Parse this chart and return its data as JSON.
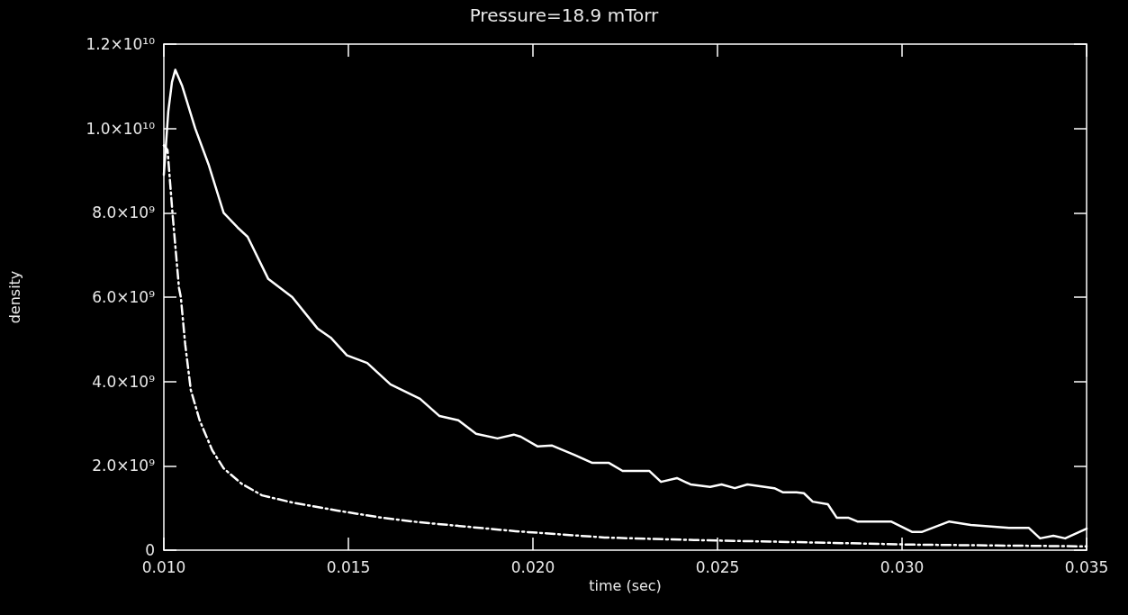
{
  "chart_data": {
    "type": "line",
    "title": "Pressure=18.9 mTorr",
    "xlabel": "time (sec)",
    "ylabel": "density",
    "xlim": [
      0.01,
      0.035
    ],
    "xticks": [
      {
        "value": 0.01,
        "label": "0.010"
      },
      {
        "value": 0.015,
        "label": "0.015"
      },
      {
        "value": 0.02,
        "label": "0.020"
      },
      {
        "value": 0.025,
        "label": "0.025"
      },
      {
        "value": 0.03,
        "label": "0.030"
      },
      {
        "value": 0.035,
        "label": "0.035"
      }
    ],
    "ylim": [
      0,
      12000000000
    ],
    "yticks": [
      0,
      {
        "value": 2000000000,
        "label": "2.0×10⁹"
      },
      {
        "value": 4000000000,
        "label": "4.0×10⁹"
      },
      {
        "value": 6000000000,
        "label": "6.0×10⁹"
      },
      {
        "value": 8000000000,
        "label": "8.0×10⁹"
      },
      {
        "value": 10000000000,
        "label": "1.0×10¹⁰"
      },
      {
        "value": 12000000000,
        "label": "1.2×10¹⁰"
      }
    ],
    "grid": false,
    "marker": "none",
    "series": [
      {
        "color": "#ffffff",
        "line_style": "solid",
        "x": [
          0.01,
          0.01012,
          0.01022,
          0.01031,
          0.0105,
          0.01085,
          0.01121,
          0.01162,
          0.012,
          0.01227,
          0.01283,
          0.01348,
          0.01416,
          0.01452,
          0.01496,
          0.01551,
          0.01614,
          0.01694,
          0.01747,
          0.01798,
          0.01846,
          0.01904,
          0.01948,
          0.01967,
          0.02013,
          0.02052,
          0.02112,
          0.02161,
          0.02206,
          0.02243,
          0.02315,
          0.02347,
          0.0239,
          0.02427,
          0.0248,
          0.02511,
          0.02547,
          0.02581,
          0.02654,
          0.02678,
          0.02714,
          0.02734,
          0.02758,
          0.02799,
          0.02823,
          0.02854,
          0.02879,
          0.0297,
          0.03028,
          0.03053,
          0.03128,
          0.03186,
          0.0329,
          0.03343,
          0.03374,
          0.0341,
          0.03442,
          0.035
        ],
        "values": [
          8900000000,
          10400000000,
          11100000000,
          11390000000,
          11000000000,
          10000000000,
          9150000000,
          8000000000,
          7650000000,
          7430000000,
          6430000000,
          6000000000,
          5260000000,
          5040000000,
          4620000000,
          4440000000,
          3930000000,
          3590000000,
          3180000000,
          3080000000,
          2760000000,
          2650000000,
          2740000000,
          2690000000,
          2460000000,
          2480000000,
          2260000000,
          2070000000,
          2070000000,
          1880000000,
          1880000000,
          1620000000,
          1710000000,
          1560000000,
          1500000000,
          1560000000,
          1470000000,
          1560000000,
          1470000000,
          1370000000,
          1370000000,
          1350000000,
          1150000000,
          1090000000,
          770000000,
          770000000,
          680000000,
          680000000,
          430000000,
          430000000,
          680000000,
          600000000,
          530000000,
          530000000,
          280000000,
          340000000,
          280000000,
          510000000
        ]
      },
      {
        "color": "#ffffff",
        "line_style": "dashed",
        "x": [
          0.01,
          0.0101,
          0.01024,
          0.01041,
          0.01046,
          0.01058,
          0.01073,
          0.01097,
          0.01131,
          0.01162,
          0.0121,
          0.01266,
          0.01348,
          0.01469,
          0.0159,
          0.01694,
          0.01953,
          0.02194,
          0.02436,
          0.02717,
          0.0304,
          0.035
        ],
        "values": [
          9600000000,
          9490000000,
          7930000000,
          6220000000,
          6000000000,
          4870000000,
          3800000000,
          3080000000,
          2370000000,
          1940000000,
          1580000000,
          1300000000,
          1130000000,
          940000000,
          770000000,
          660000000,
          450000000,
          300000000,
          240000000,
          190000000,
          130000000,
          90000000
        ]
      }
    ]
  }
}
